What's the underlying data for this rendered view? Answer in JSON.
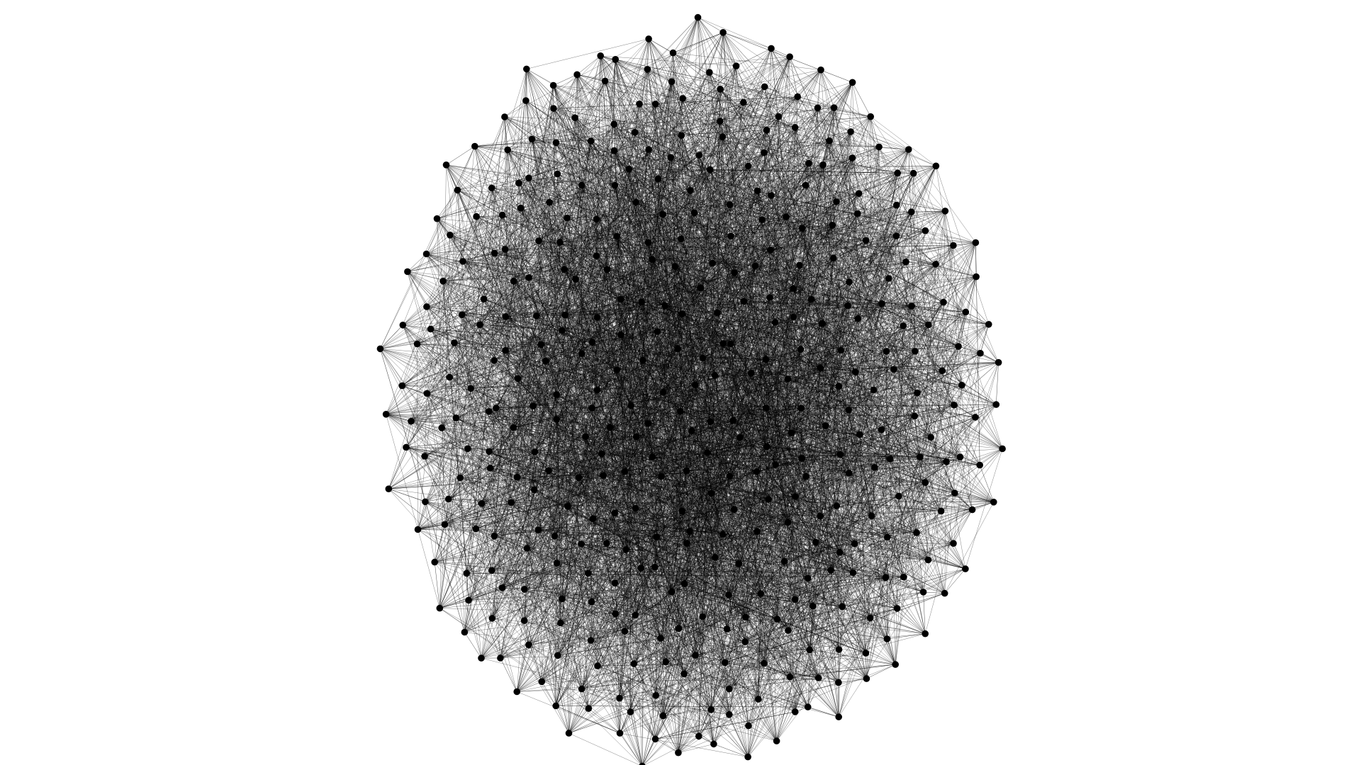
{
  "graph": {
    "layout": "force-directed",
    "node_color": "#000000",
    "edge_color": "#000000",
    "background": "#ffffff",
    "node_count": 420,
    "edges_per_node": 14
  }
}
